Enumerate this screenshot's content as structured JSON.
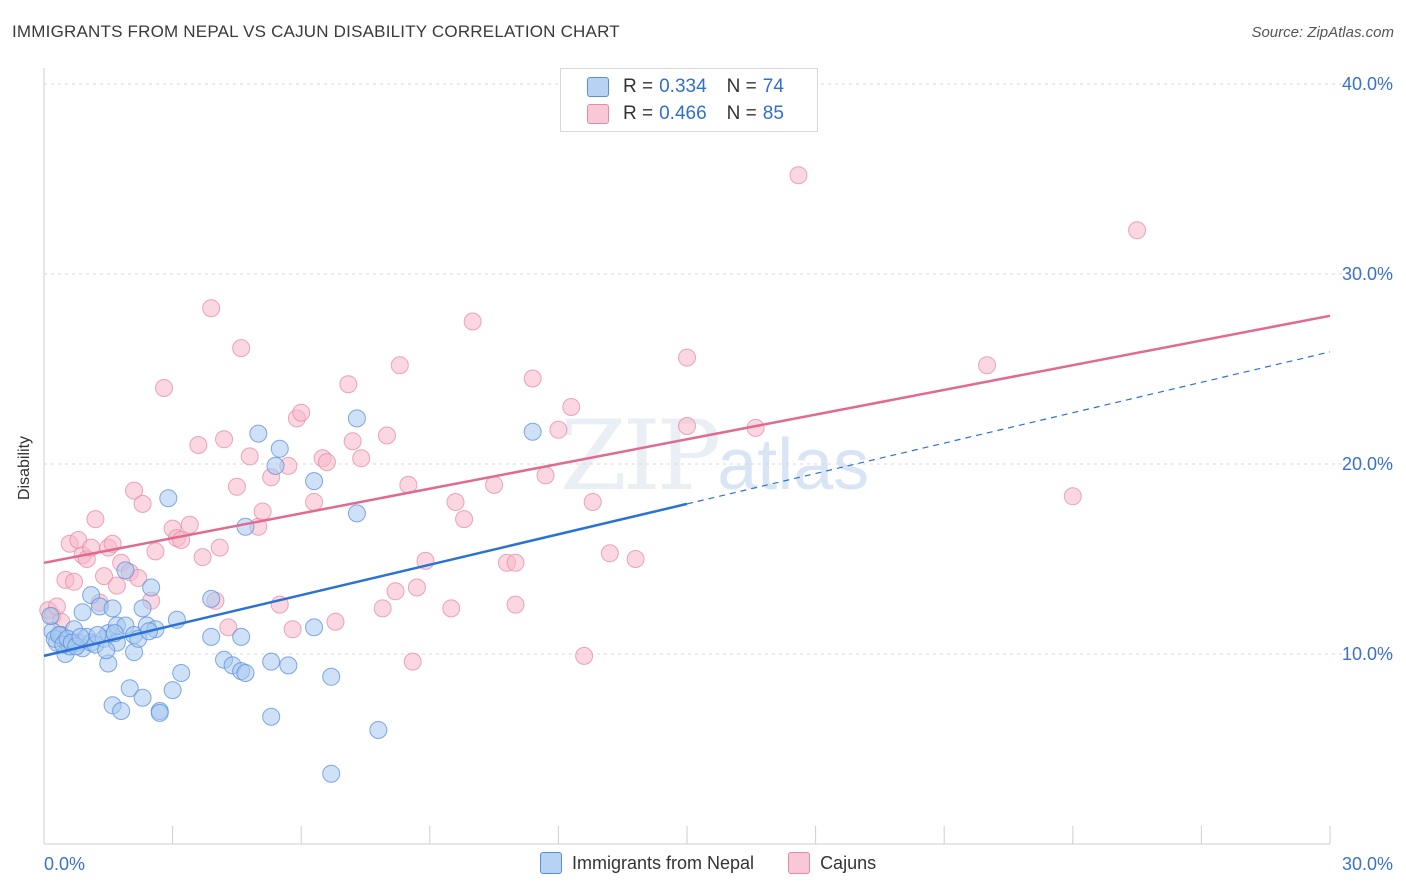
{
  "title": "IMMIGRANTS FROM NEPAL VS CAJUN DISABILITY CORRELATION CHART",
  "source": "Source: ZipAtlas.com",
  "watermark": {
    "zip": "ZIP",
    "atlas": "atlas"
  },
  "legend_top": [
    {
      "r_label": "R =",
      "r_value": "0.334",
      "n_label": "N =",
      "n_value": "74"
    },
    {
      "r_label": "R =",
      "r_value": "0.466",
      "n_label": "N =",
      "n_value": "85"
    }
  ],
  "legend_bottom": [
    "Immigrants from Nepal",
    "Cajuns"
  ],
  "colors": {
    "nepal_fill": "#a8c8f0",
    "nepal_stroke": "#5a8ed8",
    "nepal_line": "#2a72d4",
    "cajun_fill": "#f7b8c8",
    "cajun_stroke": "#e58aa4",
    "cajun_line": "#e06a90",
    "tick_label": "#3a72c8"
  },
  "chart_data": {
    "type": "scatter",
    "title": "IMMIGRANTS FROM NEPAL VS CAJUN DISABILITY CORRELATION CHART",
    "xlabel": "",
    "ylabel": "Disability",
    "xlim": [
      0,
      30
    ],
    "ylim": [
      0,
      41
    ],
    "x_tick_labels": [
      "0.0%",
      "30.0%"
    ],
    "y_ticks": [
      10,
      20,
      30,
      40
    ],
    "y_tick_labels": [
      "10.0%",
      "20.0%",
      "30.0%",
      "40.0%"
    ],
    "grid": true,
    "legend_position": "top-center",
    "series": [
      {
        "name": "Immigrants from Nepal",
        "trend": {
          "x": [
            0,
            15
          ],
          "y": [
            9.9,
            17.9
          ],
          "dashed_to": [
            30,
            25.9
          ]
        },
        "points": [
          [
            0.2,
            11.2
          ],
          [
            0.3,
            10.6
          ],
          [
            0.4,
            11.0
          ],
          [
            0.5,
            10.7
          ],
          [
            0.5,
            10.0
          ],
          [
            0.6,
            10.4
          ],
          [
            0.7,
            11.3
          ],
          [
            0.8,
            10.6
          ],
          [
            0.9,
            12.2
          ],
          [
            0.9,
            10.3
          ],
          [
            1.0,
            10.9
          ],
          [
            1.1,
            10.6
          ],
          [
            1.1,
            13.1
          ],
          [
            1.2,
            10.5
          ],
          [
            1.3,
            12.5
          ],
          [
            1.4,
            10.8
          ],
          [
            1.5,
            11.1
          ],
          [
            1.5,
            9.5
          ],
          [
            1.6,
            12.4
          ],
          [
            1.6,
            7.3
          ],
          [
            1.7,
            11.5
          ],
          [
            1.7,
            10.6
          ],
          [
            1.8,
            7.0
          ],
          [
            1.9,
            14.4
          ],
          [
            1.9,
            11.5
          ],
          [
            2.0,
            8.2
          ],
          [
            2.1,
            11.0
          ],
          [
            2.1,
            10.1
          ],
          [
            2.2,
            10.8
          ],
          [
            2.3,
            12.4
          ],
          [
            2.3,
            7.7
          ],
          [
            2.4,
            11.5
          ],
          [
            2.5,
            13.5
          ],
          [
            2.6,
            11.3
          ],
          [
            2.7,
            7.0
          ],
          [
            2.7,
            6.9
          ],
          [
            2.9,
            18.2
          ],
          [
            3.0,
            8.1
          ],
          [
            3.1,
            11.8
          ],
          [
            3.2,
            9.0
          ],
          [
            3.9,
            12.9
          ],
          [
            3.9,
            10.9
          ],
          [
            4.2,
            9.7
          ],
          [
            4.4,
            9.4
          ],
          [
            4.6,
            9.1
          ],
          [
            4.6,
            10.9
          ],
          [
            4.7,
            16.7
          ],
          [
            4.7,
            9.0
          ],
          [
            5.0,
            21.6
          ],
          [
            5.3,
            9.6
          ],
          [
            5.3,
            6.7
          ],
          [
            5.4,
            19.9
          ],
          [
            5.5,
            20.8
          ],
          [
            5.7,
            9.4
          ],
          [
            6.3,
            19.1
          ],
          [
            6.3,
            11.4
          ],
          [
            6.7,
            8.8
          ],
          [
            6.7,
            3.7
          ],
          [
            7.3,
            22.4
          ],
          [
            7.3,
            17.4
          ],
          [
            7.8,
            6.0
          ],
          [
            11.4,
            21.7
          ],
          [
            0.15,
            12.0
          ],
          [
            0.25,
            10.8
          ],
          [
            0.35,
            11.0
          ],
          [
            0.45,
            10.5
          ],
          [
            0.55,
            10.8
          ],
          [
            0.65,
            10.6
          ],
          [
            0.75,
            10.4
          ],
          [
            0.85,
            10.9
          ],
          [
            1.25,
            11.0
          ],
          [
            1.45,
            10.2
          ],
          [
            1.65,
            11.1
          ],
          [
            2.45,
            11.2
          ]
        ]
      },
      {
        "name": "Cajuns",
        "trend": {
          "x": [
            0,
            30
          ],
          "y": [
            14.8,
            27.8
          ]
        },
        "points": [
          [
            0.1,
            12.3
          ],
          [
            0.2,
            12.0
          ],
          [
            0.3,
            12.5
          ],
          [
            0.4,
            11.7
          ],
          [
            0.5,
            13.9
          ],
          [
            0.6,
            15.8
          ],
          [
            0.7,
            13.8
          ],
          [
            0.8,
            16.0
          ],
          [
            0.9,
            15.2
          ],
          [
            1.0,
            15.0
          ],
          [
            1.1,
            15.6
          ],
          [
            1.2,
            17.1
          ],
          [
            1.3,
            12.7
          ],
          [
            1.4,
            14.1
          ],
          [
            1.5,
            15.6
          ],
          [
            1.6,
            15.8
          ],
          [
            1.7,
            13.6
          ],
          [
            1.8,
            14.8
          ],
          [
            2.0,
            14.3
          ],
          [
            2.1,
            18.6
          ],
          [
            2.2,
            14.0
          ],
          [
            2.3,
            17.9
          ],
          [
            2.5,
            12.8
          ],
          [
            2.6,
            15.4
          ],
          [
            2.8,
            24.0
          ],
          [
            3.0,
            16.6
          ],
          [
            3.1,
            16.1
          ],
          [
            3.2,
            16.0
          ],
          [
            3.4,
            16.8
          ],
          [
            3.6,
            21.0
          ],
          [
            3.7,
            15.1
          ],
          [
            3.9,
            28.2
          ],
          [
            4.0,
            12.8
          ],
          [
            4.1,
            15.6
          ],
          [
            4.2,
            21.3
          ],
          [
            4.3,
            11.4
          ],
          [
            4.5,
            18.8
          ],
          [
            4.6,
            26.1
          ],
          [
            4.8,
            20.4
          ],
          [
            5.0,
            16.7
          ],
          [
            5.1,
            17.5
          ],
          [
            5.3,
            19.3
          ],
          [
            5.5,
            12.6
          ],
          [
            5.7,
            19.9
          ],
          [
            5.8,
            11.3
          ],
          [
            5.9,
            22.4
          ],
          [
            6.0,
            22.7
          ],
          [
            6.3,
            18.0
          ],
          [
            6.5,
            20.3
          ],
          [
            6.6,
            20.1
          ],
          [
            6.8,
            11.7
          ],
          [
            7.1,
            24.2
          ],
          [
            7.2,
            21.2
          ],
          [
            7.4,
            20.3
          ],
          [
            7.9,
            12.4
          ],
          [
            8.0,
            21.5
          ],
          [
            8.2,
            13.3
          ],
          [
            8.3,
            25.2
          ],
          [
            8.5,
            18.9
          ],
          [
            8.6,
            9.6
          ],
          [
            8.7,
            13.5
          ],
          [
            8.9,
            14.9
          ],
          [
            9.5,
            12.4
          ],
          [
            9.6,
            18.0
          ],
          [
            9.8,
            17.1
          ],
          [
            10.0,
            27.5
          ],
          [
            10.5,
            18.9
          ],
          [
            10.8,
            14.8
          ],
          [
            11.0,
            14.8
          ],
          [
            11.0,
            12.6
          ],
          [
            11.4,
            24.5
          ],
          [
            11.7,
            19.4
          ],
          [
            12.0,
            21.8
          ],
          [
            12.3,
            23.0
          ],
          [
            12.6,
            9.9
          ],
          [
            12.8,
            18.0
          ],
          [
            13.2,
            15.3
          ],
          [
            13.8,
            15.0
          ],
          [
            15.0,
            25.6
          ],
          [
            15.0,
            22.0
          ],
          [
            16.6,
            21.9
          ],
          [
            17.6,
            35.2
          ],
          [
            22.0,
            25.2
          ],
          [
            24.0,
            18.3
          ],
          [
            25.5,
            32.3
          ]
        ]
      }
    ]
  }
}
